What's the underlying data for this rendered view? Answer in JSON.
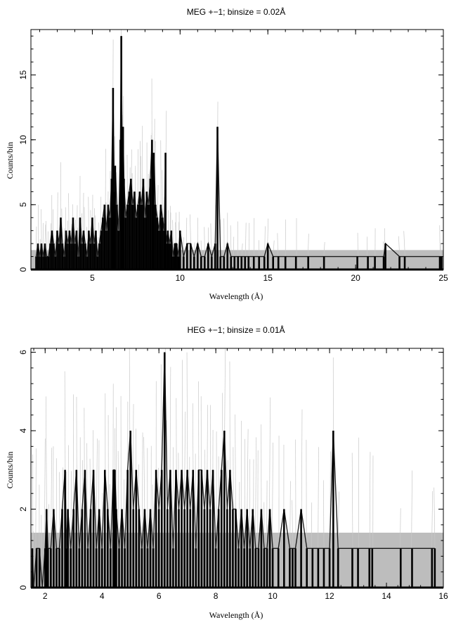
{
  "chart_data": [
    {
      "type": "line",
      "title": "MEG +−1; binsize = 0.02Å",
      "xlabel": "Wavelength (Å)",
      "ylabel": "Counts/bin",
      "xlim": [
        1.5,
        25
      ],
      "ylim": [
        0,
        18.5
      ],
      "xticks": [
        5,
        10,
        15,
        20,
        25
      ],
      "yticks": [
        0,
        5,
        10,
        15
      ],
      "background_band": 1.5,
      "grid": false,
      "series": [
        {
          "x": [
            1.8,
            1.9,
            2.0,
            2.1,
            2.2,
            2.3,
            2.4,
            2.5,
            2.6,
            2.7,
            2.8,
            2.9,
            3.0,
            3.1,
            3.2,
            3.3,
            3.4,
            3.5,
            3.6,
            3.7,
            3.8,
            3.9,
            4.0,
            4.1,
            4.2,
            4.3,
            4.4,
            4.5,
            4.6,
            4.7,
            4.8,
            4.9,
            5.0,
            5.1,
            5.2,
            5.3,
            5.4,
            5.5,
            5.6,
            5.7,
            5.8,
            5.9,
            6.0,
            6.1,
            6.18,
            6.25,
            6.3,
            6.4,
            6.5,
            6.6,
            6.65,
            6.7,
            6.75,
            6.8,
            6.9,
            7.0,
            7.1,
            7.2,
            7.3,
            7.4,
            7.5,
            7.6,
            7.7,
            7.8,
            7.9,
            8.0,
            8.1,
            8.2,
            8.3,
            8.4,
            8.45,
            8.5,
            8.6,
            8.7,
            8.8,
            8.9,
            9.0,
            9.1,
            9.17,
            9.2,
            9.3,
            9.4,
            9.5,
            9.6,
            9.7,
            9.8,
            9.9,
            10.0,
            10.2,
            10.4,
            10.6,
            10.8,
            11.0,
            11.2,
            11.4,
            11.6,
            11.8,
            12.0,
            12.13,
            12.3,
            12.5,
            12.7,
            12.9,
            13.1,
            13.3,
            13.5,
            13.7,
            13.9,
            14.2,
            14.5,
            14.8,
            15.0,
            15.3,
            15.6,
            16.0,
            16.6,
            17.3,
            18.2,
            20.1,
            20.7,
            21.1,
            21.6,
            21.7,
            22.5,
            22.8,
            24.8,
            24.9
          ],
          "y": [
            1,
            2,
            1,
            2,
            1,
            2,
            1,
            1,
            2,
            3,
            2,
            1,
            3,
            2,
            4,
            2,
            1,
            3,
            2,
            3,
            2,
            4,
            2,
            3,
            1,
            4,
            2,
            3,
            2,
            1,
            3,
            2,
            4,
            2,
            3,
            1,
            2,
            3,
            4,
            5,
            3,
            5,
            4,
            7,
            14,
            6,
            8,
            5,
            3,
            10,
            18,
            9,
            11,
            7,
            4,
            5,
            6,
            7,
            5,
            6,
            4,
            5,
            6,
            5,
            7,
            4,
            6,
            5,
            7,
            10,
            6,
            9,
            5,
            4,
            3,
            5,
            4,
            3,
            9,
            2,
            3,
            2,
            3,
            1,
            2,
            2,
            1,
            3,
            1,
            2,
            2,
            1,
            2,
            1,
            1,
            2,
            1,
            2,
            11,
            1,
            1,
            2,
            1,
            1,
            1,
            1,
            1,
            1,
            1,
            1,
            1,
            2,
            1,
            1,
            1,
            1,
            1,
            1,
            1,
            1,
            1,
            1,
            2,
            1,
            1,
            1,
            1
          ]
        }
      ]
    },
    {
      "type": "line",
      "title": "HEG +−1; binsize = 0.01Å",
      "xlabel": "Wavelength (Å)",
      "ylabel": "Counts/bin",
      "xlim": [
        1.5,
        16
      ],
      "ylim": [
        0,
        6.1
      ],
      "xticks": [
        2,
        4,
        6,
        8,
        10,
        12,
        14,
        16
      ],
      "yticks": [
        0,
        2,
        4,
        6
      ],
      "background_band": 1.4,
      "grid": false,
      "series": [
        {
          "x": [
            1.55,
            1.6,
            1.7,
            1.8,
            1.9,
            2.0,
            2.05,
            2.1,
            2.2,
            2.3,
            2.4,
            2.5,
            2.6,
            2.7,
            2.75,
            2.8,
            2.9,
            3.0,
            3.1,
            3.2,
            3.3,
            3.4,
            3.5,
            3.6,
            3.7,
            3.8,
            3.9,
            4.0,
            4.1,
            4.2,
            4.3,
            4.4,
            4.45,
            4.5,
            4.6,
            4.7,
            4.8,
            4.9,
            5.0,
            5.1,
            5.2,
            5.3,
            5.4,
            5.5,
            5.6,
            5.7,
            5.8,
            5.9,
            6.0,
            6.1,
            6.2,
            6.3,
            6.4,
            6.5,
            6.6,
            6.7,
            6.8,
            6.9,
            7.0,
            7.1,
            7.2,
            7.3,
            7.4,
            7.5,
            7.6,
            7.7,
            7.8,
            7.9,
            8.0,
            8.1,
            8.2,
            8.3,
            8.4,
            8.5,
            8.6,
            8.7,
            8.8,
            8.9,
            9.0,
            9.1,
            9.2,
            9.3,
            9.4,
            9.5,
            9.6,
            9.7,
            9.8,
            9.9,
            10.0,
            10.2,
            10.4,
            10.6,
            10.7,
            10.8,
            11.0,
            11.2,
            11.4,
            11.6,
            11.8,
            12.0,
            12.13,
            12.3,
            12.8,
            13.0,
            13.4,
            13.5,
            14.5,
            14.9,
            15.6,
            15.7
          ],
          "y": [
            1,
            0,
            1,
            1,
            0,
            1,
            2,
            1,
            1,
            2,
            1,
            1,
            2,
            3,
            1,
            2,
            1,
            2,
            3,
            1,
            2,
            3,
            1,
            2,
            3,
            1,
            2,
            1,
            3,
            2,
            1,
            3,
            3,
            2,
            1,
            2,
            1,
            3,
            4,
            2,
            3,
            2,
            1,
            2,
            1,
            2,
            1,
            3,
            2,
            3,
            6,
            2,
            3,
            1,
            3,
            2,
            3,
            2,
            3,
            2,
            3,
            1,
            3,
            3,
            2,
            3,
            2,
            3,
            1,
            2,
            3,
            4,
            2,
            3,
            2,
            2,
            1,
            2,
            1,
            2,
            1,
            2,
            1,
            1,
            2,
            1,
            1,
            2,
            1,
            1,
            2,
            1,
            1,
            1,
            2,
            1,
            1,
            1,
            1,
            1,
            4,
            1,
            1,
            1,
            1,
            1,
            1,
            1,
            1,
            1
          ]
        }
      ]
    }
  ]
}
